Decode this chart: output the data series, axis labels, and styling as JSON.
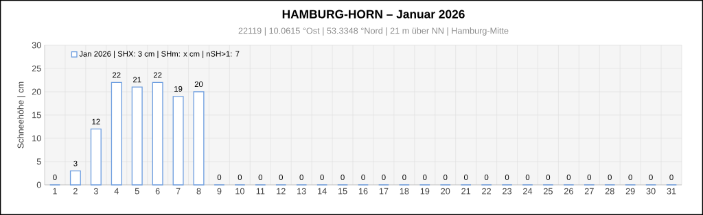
{
  "chart_data": {
    "type": "bar",
    "title": "HAMBURG-HORN  –  Januar 2026",
    "subtitle": "22119  |  10.0615 °Ost  |  53.3348 °Nord  | 21 m über NN  |  Hamburg-Mitte",
    "ylabel": "Schneehöhe  |  cm",
    "categories": [
      "1",
      "2",
      "3",
      "4",
      "5",
      "6",
      "7",
      "8",
      "9",
      "10",
      "11",
      "12",
      "13",
      "14",
      "15",
      "16",
      "17",
      "18",
      "19",
      "20",
      "21",
      "22",
      "23",
      "24",
      "25",
      "26",
      "27",
      "28",
      "29",
      "30",
      "31"
    ],
    "series": [
      {
        "name": "Jan 2026 | SHX: 3 cm | SHm:  x cm | nSH>1:  7",
        "color": "#6f9fe0",
        "values": [
          0,
          3,
          12,
          22,
          21,
          22,
          19,
          20,
          0,
          0,
          0,
          0,
          0,
          0,
          0,
          0,
          0,
          0,
          0,
          0,
          0,
          0,
          0,
          0,
          0,
          0,
          0,
          0,
          0,
          0,
          0
        ]
      }
    ],
    "ylim": [
      0,
      30
    ],
    "yticks": [
      0,
      5,
      10,
      15,
      20,
      25,
      30
    ],
    "grid": true,
    "legend": "top left",
    "data_labels": true
  }
}
